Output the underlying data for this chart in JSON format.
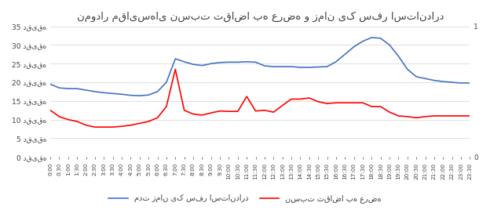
{
  "title": "نمودار مقایسه‌ای نسبت تقاضا به عرضه و زمان یک سفر استاندارد",
  "x_labels": [
    "0:00",
    "0:30",
    "1:00",
    "1:30",
    "2:00",
    "2:30",
    "3:00",
    "3:30",
    "4:00",
    "4:30",
    "5:00",
    "5:30",
    "6:00",
    "6:30",
    "7:00",
    "7:30",
    "8:00",
    "8:30",
    "9:00",
    "9:30",
    "10:00",
    "10:30",
    "11:00",
    "11:30",
    "12:00",
    "12:30",
    "13:00",
    "13:30",
    "14:00",
    "14:30",
    "15:00",
    "15:30",
    "16:00",
    "16:30",
    "17:00",
    "17:30",
    "18:00",
    "18:30",
    "19:00",
    "19:30",
    "20:00",
    "20:30",
    "21:00",
    "21:30",
    "22:00",
    "22:30",
    "23:00",
    "23:30"
  ],
  "blue_line": [
    19.5,
    18.5,
    18.3,
    18.3,
    17.9,
    17.5,
    17.2,
    17.0,
    16.8,
    16.5,
    16.4,
    16.6,
    17.5,
    20.0,
    26.3,
    25.5,
    24.8,
    24.5,
    25.0,
    25.3,
    25.4,
    25.4,
    25.5,
    25.4,
    24.4,
    24.2,
    24.2,
    24.2,
    24.0,
    24.0,
    24.1,
    24.2,
    25.5,
    27.5,
    29.5,
    31.0,
    32.0,
    31.8,
    30.0,
    27.0,
    23.5,
    21.5,
    21.0,
    20.5,
    20.2,
    20.0,
    19.8,
    19.8
  ],
  "red_line": [
    12.5,
    10.8,
    10.0,
    9.5,
    8.5,
    8.0,
    8.0,
    8.0,
    8.2,
    8.5,
    9.0,
    9.5,
    10.5,
    13.5,
    23.5,
    12.5,
    11.5,
    11.2,
    11.8,
    12.3,
    12.2,
    12.2,
    16.2,
    12.3,
    12.5,
    12.0,
    13.8,
    15.5,
    15.5,
    15.8,
    14.8,
    14.3,
    14.5,
    14.5,
    14.5,
    14.5,
    13.5,
    13.5,
    12.0,
    11.0,
    10.8,
    10.5,
    10.8,
    11.0,
    11.0,
    11.0,
    11.0,
    11.0
  ],
  "blue_color": "#4472C4",
  "red_color": "#FF0000",
  "left_ylim": [
    0,
    35
  ],
  "right_ylim": [
    0,
    1
  ],
  "left_yticks": [
    0,
    5,
    10,
    15,
    20,
    25,
    30,
    35
  ],
  "right_yticks": [
    0,
    1
  ],
  "ytick_labels": [
    "0 دقیقه",
    "5 دقیقه",
    "10 دقیقه",
    "15 دقیقه",
    "20 دقیقه",
    "25 دقیقه",
    "30 دقیقه",
    "35 دقیقه"
  ],
  "legend_blue": "مدت زمان یک سفر استاندارد",
  "legend_red": "نسبت تقاضا به عرضه",
  "background_color": "#ffffff",
  "grid_color": "#d3d3d3",
  "text_color": "#404040"
}
